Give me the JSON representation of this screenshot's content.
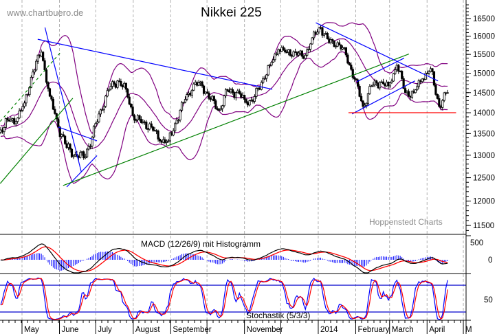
{
  "header": {
    "watermark": "www.chartbuero.de",
    "title": "Nikkei 225"
  },
  "footer": {
    "source": "Hoppenstedt Charts"
  },
  "colors": {
    "candle_up": "#ffffff",
    "candle_down": "#000000",
    "bollinger": "#800080",
    "trend_blue": "#0000ff",
    "trend_green": "#008000",
    "support_red": "#ff0000",
    "grid": "#b0b0b0",
    "macd_line": "#000000",
    "macd_signal": "#ff0000",
    "macd_hist": "#0000ff",
    "stoch_k": "#0000ff",
    "stoch_d": "#ff0000"
  },
  "chart_data": {
    "type": "candlestick",
    "title": "Nikkei 225",
    "y_scale": "log",
    "ylim": [
      11340,
      17040
    ],
    "yticks": [
      "16500",
      "16000",
      "15500",
      "15000",
      "14500",
      "14000",
      "13500",
      "13000",
      "12500",
      "12000",
      "11500"
    ],
    "xticks": [
      {
        "date": "2013-05-01",
        "label": "May"
      },
      {
        "date": "2013-06-01",
        "label": "June"
      },
      {
        "date": "2013-07-01",
        "label": "July"
      },
      {
        "date": "2013-08-01",
        "label": "August"
      },
      {
        "date": "2013-09-01",
        "label": "September"
      },
      {
        "date": "2013-10-01",
        "label": ""
      },
      {
        "date": "2013-11-01",
        "label": "November"
      },
      {
        "date": "2013-12-01",
        "label": ""
      },
      {
        "date": "2014-01-01",
        "label": "2014"
      },
      {
        "date": "2014-02-01",
        "label": "February"
      },
      {
        "date": "2014-03-01",
        "label": "March"
      },
      {
        "date": "2014-04-01",
        "label": "April"
      },
      {
        "date": "2014-05-01",
        "label": "M"
      }
    ],
    "grid": "vertical dashed at month starts",
    "weekly_closes": [
      [
        "2013-04-12",
        13530
      ],
      [
        "2013-04-19",
        13820
      ],
      [
        "2013-04-26",
        13790
      ],
      [
        "2013-05-03",
        14240
      ],
      [
        "2013-05-10",
        15030
      ],
      [
        "2013-05-17",
        15560
      ],
      [
        "2013-05-24",
        14410
      ],
      [
        "2013-05-31",
        13655
      ],
      [
        "2013-06-07",
        13175
      ],
      [
        "2013-06-14",
        13020
      ],
      [
        "2013-06-21",
        12940
      ],
      [
        "2013-06-28",
        13415
      ],
      [
        "2013-07-05",
        14070
      ],
      [
        "2013-07-12",
        14585
      ],
      [
        "2013-07-19",
        14800
      ],
      [
        "2013-07-26",
        14585
      ],
      [
        "2013-08-02",
        13820
      ],
      [
        "2013-08-09",
        13780
      ],
      [
        "2013-08-16",
        13655
      ],
      [
        "2013-08-23",
        13330
      ],
      [
        "2013-08-30",
        13330
      ],
      [
        "2013-09-06",
        13820
      ],
      [
        "2013-09-13",
        14330
      ],
      [
        "2013-09-20",
        14720
      ],
      [
        "2013-09-27",
        14670
      ],
      [
        "2013-10-04",
        14330
      ],
      [
        "2013-10-11",
        14070
      ],
      [
        "2013-10-18",
        14550
      ],
      [
        "2013-10-25",
        14500
      ],
      [
        "2013-11-01",
        14330
      ],
      [
        "2013-11-08",
        14280
      ],
      [
        "2013-11-15",
        14760
      ],
      [
        "2013-11-22",
        15210
      ],
      [
        "2013-11-29",
        15630
      ],
      [
        "2013-12-06",
        15560
      ],
      [
        "2013-12-13",
        15560
      ],
      [
        "2013-12-20",
        15390
      ],
      [
        "2013-12-27",
        15955
      ],
      [
        "2014-01-03",
        16245
      ],
      [
        "2014-01-10",
        15820
      ],
      [
        "2014-01-17",
        15820
      ],
      [
        "2014-01-24",
        15485
      ],
      [
        "2014-01-31",
        14850
      ],
      [
        "2014-02-07",
        14155
      ],
      [
        "2014-02-14",
        14670
      ],
      [
        "2014-02-21",
        14760
      ],
      [
        "2014-02-28",
        14670
      ],
      [
        "2014-03-07",
        15210
      ],
      [
        "2014-03-14",
        14500
      ],
      [
        "2014-03-21",
        14500
      ],
      [
        "2014-03-28",
        14850
      ],
      [
        "2014-04-04",
        15120
      ],
      [
        "2014-04-11",
        14155
      ],
      [
        "2014-04-18",
        14500
      ]
    ],
    "bollinger": {
      "period": 20,
      "stddev": 2
    },
    "trendlines": [
      {
        "color": "blue",
        "from": [
          "2013-05-14",
          15915
        ],
        "to": [
          "2013-11-24",
          14585
        ]
      },
      {
        "color": "blue",
        "from": [
          "2013-05-20",
          16245
        ],
        "to": [
          "2013-06-19",
          12630
        ]
      },
      {
        "color": "blue",
        "from": [
          "2013-05-31",
          13655
        ],
        "to": [
          "2013-07-02",
          13330
        ]
      },
      {
        "color": "blue",
        "from": [
          "2013-06-07",
          12300
        ],
        "to": [
          "2013-07-02",
          12990
        ]
      },
      {
        "color": "green",
        "from": [
          "2013-06-04",
          12330
        ],
        "to": [
          "2014-03-17",
          15510
        ]
      },
      {
        "color": "green",
        "from": [
          "2013-04-13",
          12375
        ],
        "to": [
          "2013-06-12",
          14360
        ]
      },
      {
        "color": "green",
        "dashed": true,
        "from": [
          "2013-04-13",
          13790
        ],
        "to": [
          "2013-06-02",
          15560
        ]
      },
      {
        "color": "blue",
        "from": [
          "2013-12-30",
          16380
        ],
        "to": [
          "2014-04-10",
          14800
        ]
      },
      {
        "color": "blue",
        "from": [
          "2014-02-02",
          14780
        ],
        "to": [
          "2014-03-13",
          15400
        ]
      },
      {
        "color": "blue",
        "from": [
          "2014-01-29",
          13970
        ],
        "to": [
          "2014-03-22",
          14800
        ]
      },
      {
        "color": "red",
        "from": [
          "2014-01-26",
          14000
        ],
        "to": [
          "2014-04-25",
          14000
        ]
      }
    ],
    "macd": {
      "label": "MACD (12/26/9) mit Histogramm",
      "params": [
        12,
        26,
        9
      ],
      "yticks": [
        "500",
        "0"
      ]
    },
    "stochastic": {
      "label": "Stochastik (5/3/3)",
      "params": [
        5,
        3,
        3
      ],
      "levels": [
        20,
        80
      ],
      "yticks": [
        "50"
      ]
    }
  }
}
